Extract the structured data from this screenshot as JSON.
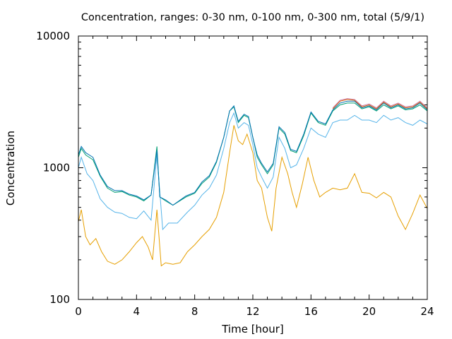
{
  "chart_data": {
    "type": "line",
    "title": "Concentration, ranges: 0-30 nm, 0-100 nm, 0-300 nm, total (5/9/1)",
    "xlabel": "Time [hour]",
    "ylabel": "Concentration",
    "xlim": [
      0,
      24
    ],
    "ylim": [
      100,
      10000
    ],
    "yscale": "log",
    "xticks": [
      "0",
      "4",
      "8",
      "12",
      "16",
      "20",
      "24"
    ],
    "yticks": [
      "100",
      "1000",
      "10000"
    ],
    "grid": false,
    "legend": "none",
    "series": [
      {
        "color": "#e69f00",
        "points": [
          [
            0,
            390
          ],
          [
            0.2,
            480
          ],
          [
            0.5,
            300
          ],
          [
            0.8,
            260
          ],
          [
            1.2,
            290
          ],
          [
            1.6,
            230
          ],
          [
            2,
            195
          ],
          [
            2.5,
            185
          ],
          [
            3,
            200
          ],
          [
            3.5,
            230
          ],
          [
            4,
            270
          ],
          [
            4.4,
            300
          ],
          [
            4.8,
            250
          ],
          [
            5.1,
            200
          ],
          [
            5.4,
            480
          ],
          [
            5.7,
            180
          ],
          [
            6,
            190
          ],
          [
            6.5,
            185
          ],
          [
            7,
            190
          ],
          [
            7.5,
            230
          ],
          [
            8,
            260
          ],
          [
            8.5,
            300
          ],
          [
            9,
            340
          ],
          [
            9.5,
            420
          ],
          [
            10,
            650
          ],
          [
            10.4,
            1300
          ],
          [
            10.7,
            2100
          ],
          [
            11,
            1600
          ],
          [
            11.3,
            1500
          ],
          [
            11.6,
            1800
          ],
          [
            12,
            1300
          ],
          [
            12.3,
            800
          ],
          [
            12.6,
            700
          ],
          [
            13,
            420
          ],
          [
            13.3,
            330
          ],
          [
            13.6,
            700
          ],
          [
            14,
            1200
          ],
          [
            14.4,
            900
          ],
          [
            14.7,
            650
          ],
          [
            15,
            500
          ],
          [
            15.4,
            750
          ],
          [
            15.8,
            1200
          ],
          [
            16.2,
            800
          ],
          [
            16.6,
            600
          ],
          [
            17,
            650
          ],
          [
            17.5,
            700
          ],
          [
            18,
            680
          ],
          [
            18.5,
            700
          ],
          [
            19,
            900
          ],
          [
            19.5,
            650
          ],
          [
            20,
            640
          ],
          [
            20.5,
            590
          ],
          [
            21,
            650
          ],
          [
            21.5,
            600
          ],
          [
            22,
            430
          ],
          [
            22.5,
            340
          ],
          [
            23,
            450
          ],
          [
            23.5,
            620
          ],
          [
            24,
            490
          ]
        ]
      },
      {
        "color": "#56b4e9",
        "points": [
          [
            0,
            1000
          ],
          [
            0.2,
            1200
          ],
          [
            0.6,
            900
          ],
          [
            1,
            800
          ],
          [
            1.5,
            580
          ],
          [
            2,
            500
          ],
          [
            2.5,
            460
          ],
          [
            3,
            450
          ],
          [
            3.5,
            420
          ],
          [
            4,
            410
          ],
          [
            4.5,
            470
          ],
          [
            5,
            400
          ],
          [
            5.4,
            1250
          ],
          [
            5.8,
            340
          ],
          [
            6.2,
            380
          ],
          [
            6.8,
            380
          ],
          [
            7.5,
            460
          ],
          [
            8,
            520
          ],
          [
            8.5,
            620
          ],
          [
            9,
            700
          ],
          [
            9.5,
            880
          ],
          [
            10,
            1400
          ],
          [
            10.4,
            2200
          ],
          [
            10.7,
            2600
          ],
          [
            11,
            2000
          ],
          [
            11.4,
            2200
          ],
          [
            11.7,
            2100
          ],
          [
            12,
            1500
          ],
          [
            12.3,
            1000
          ],
          [
            12.6,
            850
          ],
          [
            13,
            700
          ],
          [
            13.4,
            850
          ],
          [
            13.8,
            1700
          ],
          [
            14.2,
            1400
          ],
          [
            14.6,
            1000
          ],
          [
            15,
            1050
          ],
          [
            15.5,
            1400
          ],
          [
            16,
            2000
          ],
          [
            16.5,
            1800
          ],
          [
            17,
            1700
          ],
          [
            17.5,
            2200
          ],
          [
            18,
            2300
          ],
          [
            18.5,
            2300
          ],
          [
            19,
            2500
          ],
          [
            19.5,
            2300
          ],
          [
            20,
            2300
          ],
          [
            20.5,
            2200
          ],
          [
            21,
            2500
          ],
          [
            21.5,
            2300
          ],
          [
            22,
            2400
          ],
          [
            22.5,
            2200
          ],
          [
            23,
            2100
          ],
          [
            23.5,
            2300
          ],
          [
            24,
            2150
          ]
        ]
      },
      {
        "color": "#009e73",
        "points": [
          [
            0,
            1200
          ],
          [
            0.2,
            1400
          ],
          [
            0.5,
            1250
          ],
          [
            1,
            1150
          ],
          [
            1.5,
            860
          ],
          [
            2,
            700
          ],
          [
            2.5,
            650
          ],
          [
            3,
            660
          ],
          [
            3.5,
            620
          ],
          [
            4,
            600
          ],
          [
            4.5,
            560
          ],
          [
            5,
            620
          ],
          [
            5.4,
            1450
          ],
          [
            5.6,
            600
          ],
          [
            6,
            560
          ],
          [
            6.5,
            520
          ],
          [
            7.4,
            600
          ],
          [
            8,
            640
          ],
          [
            8.5,
            760
          ],
          [
            9,
            850
          ],
          [
            9.5,
            1100
          ],
          [
            10,
            1700
          ],
          [
            10.4,
            2700
          ],
          [
            10.7,
            2900
          ],
          [
            11,
            2200
          ],
          [
            11.4,
            2500
          ],
          [
            11.7,
            2400
          ],
          [
            12,
            1700
          ],
          [
            12.3,
            1200
          ],
          [
            12.6,
            1050
          ],
          [
            13,
            900
          ],
          [
            13.4,
            1050
          ],
          [
            13.8,
            2000
          ],
          [
            14.2,
            1800
          ],
          [
            14.6,
            1350
          ],
          [
            15,
            1300
          ],
          [
            15.5,
            1750
          ],
          [
            16,
            2600
          ],
          [
            16.5,
            2200
          ],
          [
            17,
            2100
          ],
          [
            17.5,
            2700
          ],
          [
            18,
            3000
          ],
          [
            18.5,
            3100
          ],
          [
            19,
            3100
          ],
          [
            19.5,
            2800
          ],
          [
            20,
            2900
          ],
          [
            20.5,
            2700
          ],
          [
            21,
            3000
          ],
          [
            21.5,
            2800
          ],
          [
            22,
            2950
          ],
          [
            22.5,
            2750
          ],
          [
            23,
            2800
          ],
          [
            23.5,
            3000
          ],
          [
            24,
            2700
          ]
        ]
      },
      {
        "color": "#0072b2",
        "points": [
          [
            0,
            1250
          ],
          [
            0.2,
            1450
          ],
          [
            0.5,
            1300
          ],
          [
            1,
            1200
          ],
          [
            1.5,
            880
          ],
          [
            2,
            720
          ],
          [
            2.5,
            670
          ],
          [
            3,
            670
          ],
          [
            3.5,
            630
          ],
          [
            4,
            610
          ],
          [
            4.5,
            570
          ],
          [
            5,
            620
          ],
          [
            5.4,
            1350
          ],
          [
            5.6,
            600
          ],
          [
            6,
            570
          ],
          [
            6.5,
            520
          ],
          [
            7.4,
            610
          ],
          [
            8,
            650
          ],
          [
            8.5,
            780
          ],
          [
            9,
            870
          ],
          [
            9.5,
            1120
          ],
          [
            10,
            1700
          ],
          [
            10.4,
            2700
          ],
          [
            10.7,
            2950
          ],
          [
            11,
            2250
          ],
          [
            11.4,
            2550
          ],
          [
            11.7,
            2450
          ],
          [
            12,
            1700
          ],
          [
            12.3,
            1250
          ],
          [
            12.6,
            1080
          ],
          [
            13,
            930
          ],
          [
            13.4,
            1080
          ],
          [
            13.8,
            2050
          ],
          [
            14.2,
            1850
          ],
          [
            14.6,
            1380
          ],
          [
            15,
            1330
          ],
          [
            15.5,
            1800
          ],
          [
            16,
            2650
          ],
          [
            16.5,
            2250
          ],
          [
            17,
            2150
          ],
          [
            17.5,
            2750
          ],
          [
            18,
            3100
          ],
          [
            18.5,
            3200
          ],
          [
            19,
            3200
          ],
          [
            19.5,
            2850
          ],
          [
            20,
            2950
          ],
          [
            20.5,
            2750
          ],
          [
            21,
            3100
          ],
          [
            21.5,
            2850
          ],
          [
            22,
            3000
          ],
          [
            22.5,
            2800
          ],
          [
            23,
            2850
          ],
          [
            23.5,
            3100
          ],
          [
            24,
            2750
          ]
        ]
      },
      {
        "color": "#d55e00",
        "points": [
          [
            17.5,
            2800
          ],
          [
            18,
            3200
          ],
          [
            18.5,
            3300
          ],
          [
            19,
            3250
          ],
          [
            19.5,
            2900
          ],
          [
            20,
            3000
          ],
          [
            20.5,
            2800
          ],
          [
            21,
            3150
          ],
          [
            21.5,
            2900
          ],
          [
            22,
            3050
          ],
          [
            22.5,
            2850
          ],
          [
            23,
            2900
          ],
          [
            23.5,
            3150
          ],
          [
            24,
            2800
          ]
        ]
      },
      {
        "color": "#cc79a7",
        "points": [
          [
            17.5,
            2850
          ],
          [
            18,
            3250
          ],
          [
            18.5,
            3350
          ],
          [
            19,
            3300
          ],
          [
            19.5,
            2950
          ],
          [
            20,
            3050
          ],
          [
            20.5,
            2850
          ],
          [
            21,
            3200
          ],
          [
            21.5,
            2950
          ],
          [
            22,
            3100
          ],
          [
            22.5,
            2900
          ],
          [
            23,
            2950
          ],
          [
            23.5,
            3200
          ],
          [
            24,
            2850
          ]
        ]
      }
    ]
  }
}
